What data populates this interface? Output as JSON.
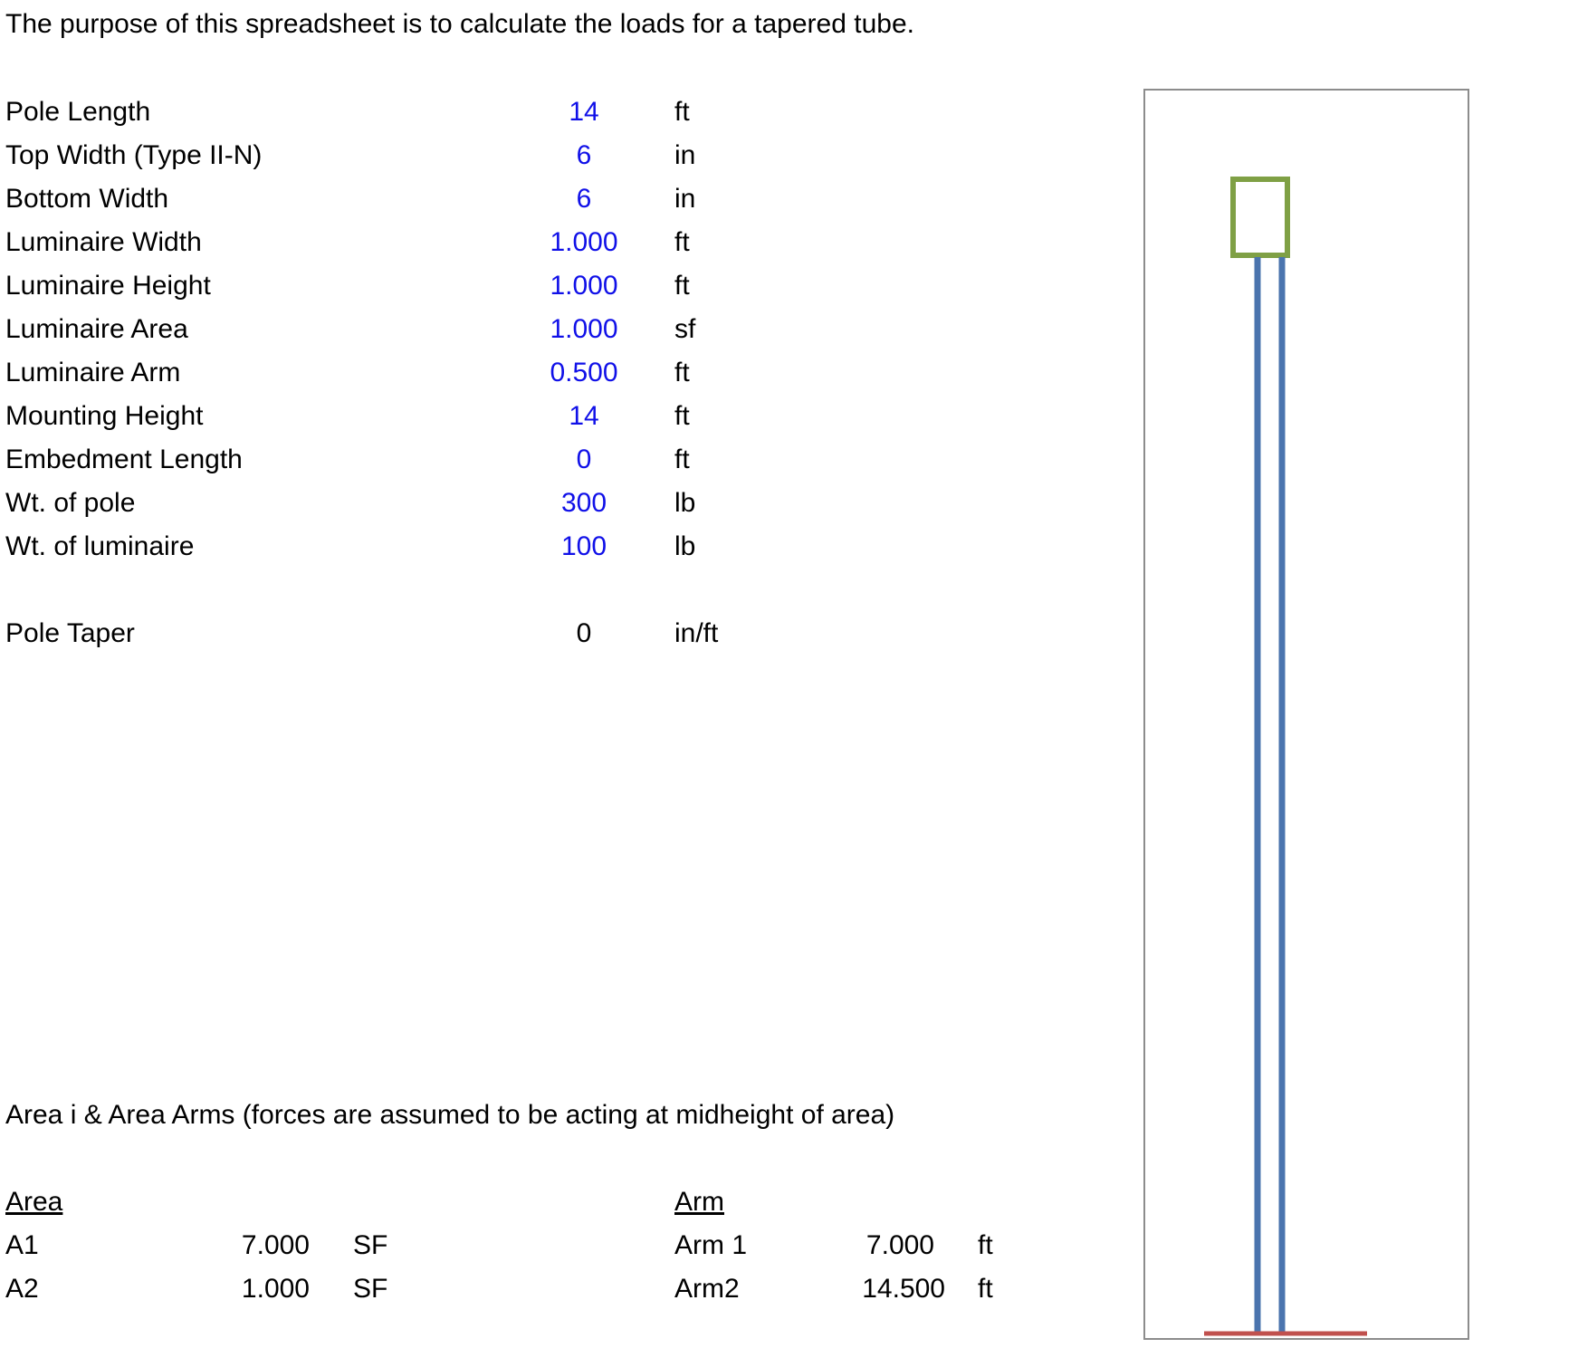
{
  "intro": "The purpose of this spreadsheet is to calculate the loads for a tapered tube.",
  "inputs": [
    {
      "label": "Pole Length",
      "value": "14",
      "unit": "ft"
    },
    {
      "label": "Top Width (Type II-N)",
      "value": "6",
      "unit": "in"
    },
    {
      "label": "Bottom Width",
      "value": "6",
      "unit": "in"
    },
    {
      "label": "Luminaire Width",
      "value": "1.000",
      "unit": "ft"
    },
    {
      "label": "Luminaire Height",
      "value": "1.000",
      "unit": "ft"
    },
    {
      "label": "Luminaire Area",
      "value": "1.000",
      "unit": "sf"
    },
    {
      "label": "Luminaire Arm",
      "value": "0.500",
      "unit": "ft"
    },
    {
      "label": "Mounting Height",
      "value": "14",
      "unit": "ft"
    },
    {
      "label": "Embedment Length",
      "value": "0",
      "unit": "ft"
    },
    {
      "label": "Wt. of pole",
      "value": "300",
      "unit": "lb"
    },
    {
      "label": "Wt. of luminaire",
      "value": "100",
      "unit": "lb"
    }
  ],
  "taper": {
    "label": "Pole Taper",
    "value": "0",
    "unit": "in/ft"
  },
  "areas_heading": "Area i & Area Arms (forces are assumed to be acting at midheight of area)",
  "areas": {
    "area_header": "Area",
    "arm_header": "Arm",
    "rows": [
      {
        "area_label": "A1",
        "area_value": "7.000",
        "area_unit": "SF",
        "arm_label": "Arm 1",
        "arm_value": "7.000",
        "arm_unit": "ft"
      },
      {
        "area_label": "A2",
        "area_value": "1.000",
        "area_unit": "SF",
        "arm_label": "Arm2",
        "arm_value": "14.500",
        "arm_unit": "ft"
      }
    ]
  },
  "diagram_colors": {
    "pole": "#4a74ae",
    "luminaire": "#7fa045",
    "ground": "#c0504d",
    "frame": "#8c8c8c"
  }
}
